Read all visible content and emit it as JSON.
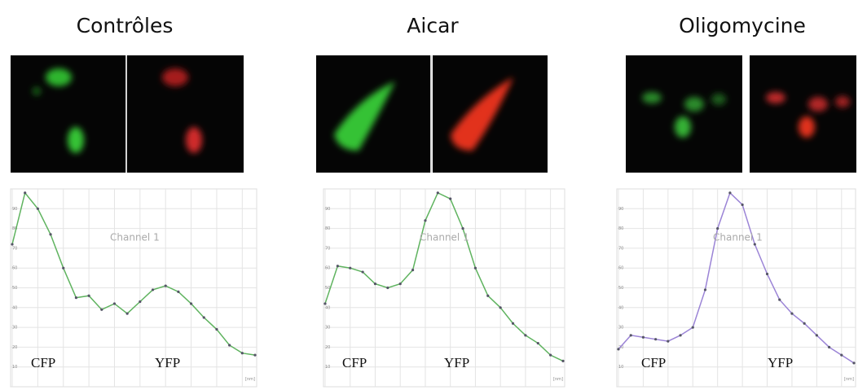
{
  "chart_data": [
    {
      "type": "line",
      "title": "Contrôles",
      "series": [
        {
          "name": "Channel 1",
          "color": "#5fb35f",
          "values": [
            72,
            98,
            90,
            77,
            60,
            45,
            46,
            39,
            42,
            37,
            43,
            49,
            51,
            48,
            42,
            35,
            29,
            21,
            17,
            16
          ]
        }
      ],
      "annotations": [
        "CFP",
        "YFP"
      ],
      "x_unit": "[nm]",
      "ylim": [
        0,
        100
      ],
      "yticks": [
        10,
        20,
        30,
        40,
        50,
        60,
        70,
        80,
        90
      ],
      "grid": true
    },
    {
      "type": "line",
      "title": "Aicar",
      "series": [
        {
          "name": "Channel 1",
          "color": "#5fb35f",
          "values": [
            42,
            61,
            60,
            58,
            52,
            50,
            52,
            59,
            84,
            98,
            95,
            80,
            60,
            46,
            40,
            32,
            26,
            22,
            16,
            13
          ]
        }
      ],
      "annotations": [
        "CFP",
        "YFP"
      ],
      "x_unit": "[nm]",
      "ylim": [
        0,
        100
      ],
      "yticks": [
        10,
        20,
        30,
        40,
        50,
        60,
        70,
        80,
        90
      ],
      "grid": true
    },
    {
      "type": "line",
      "title": "Oligomycine",
      "series": [
        {
          "name": "Channel 1",
          "color": "#9b84d6",
          "values": [
            19,
            26,
            25,
            24,
            23,
            26,
            30,
            49,
            80,
            98,
            92,
            72,
            57,
            44,
            37,
            32,
            26,
            20,
            16,
            12
          ]
        }
      ],
      "annotations": [
        "CFP",
        "YFP"
      ],
      "x_unit": "[nm]",
      "ylim": [
        0,
        100
      ],
      "yticks": [
        10,
        20,
        30,
        40,
        50,
        60,
        70,
        80,
        90
      ],
      "grid": true
    }
  ]
}
